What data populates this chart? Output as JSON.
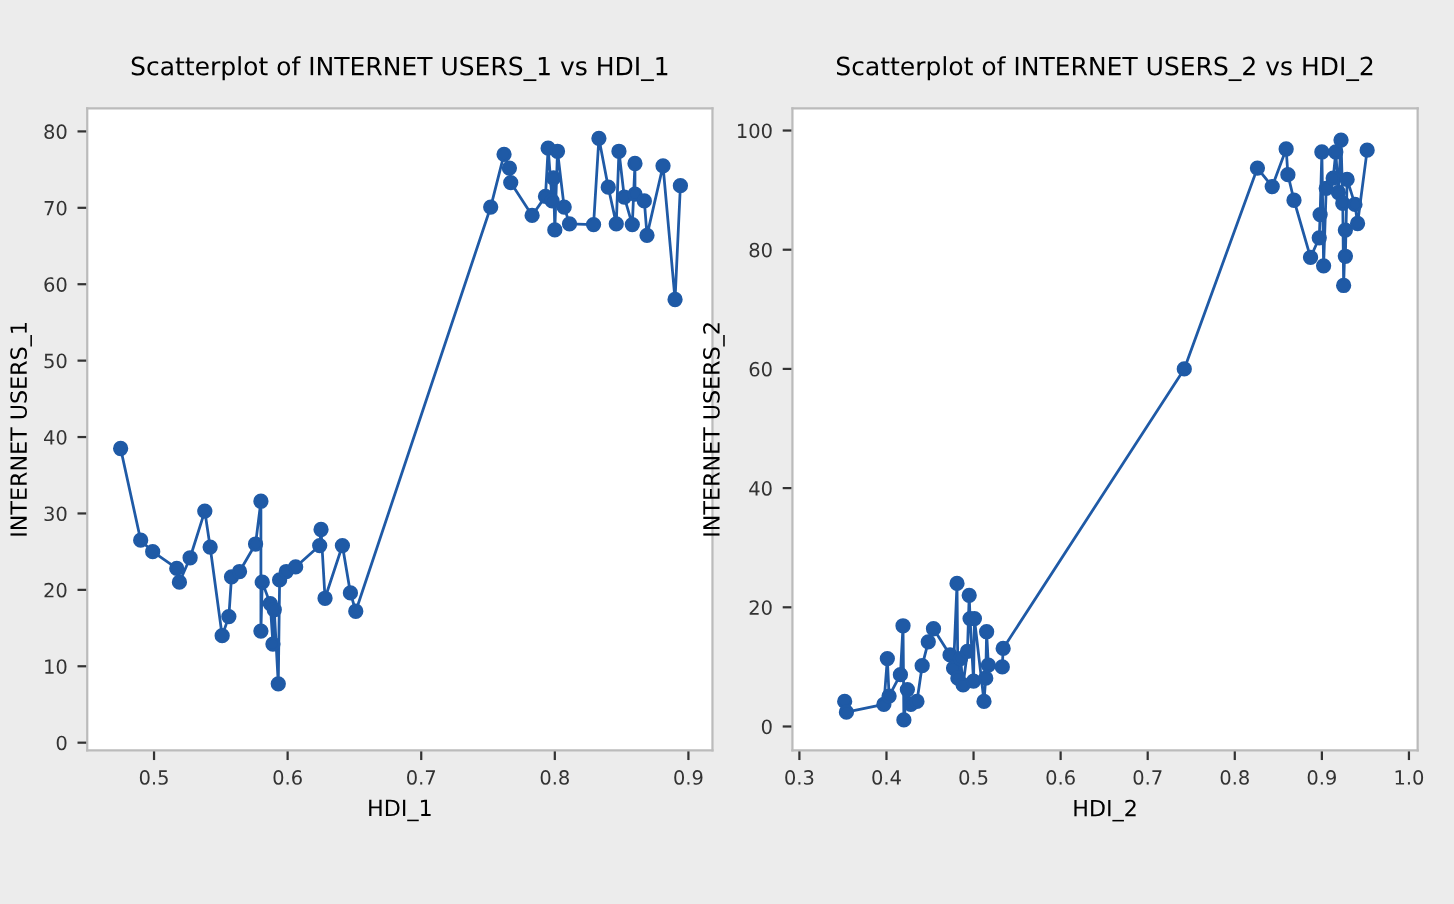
{
  "chart_data": [
    {
      "type": "line",
      "title": "Scatterplot of INTERNET USERS_1 vs HDI_1",
      "xlabel": "HDI_1",
      "ylabel": "INTERNET USERS_1",
      "marker": "circle",
      "line_style": "solid",
      "grid": false,
      "xlim": [
        0.45,
        0.918
      ],
      "ylim": [
        -1,
        83
      ],
      "xticks": [
        0.5,
        0.6,
        0.7,
        0.8,
        0.9
      ],
      "yticks": [
        0,
        10,
        20,
        30,
        40,
        50,
        60,
        70,
        80
      ],
      "series": [
        {
          "color": "#1f5aa6",
          "x": [
            0.475,
            0.49,
            0.499,
            0.517,
            0.519,
            0.527,
            0.538,
            0.542,
            0.551,
            0.556,
            0.558,
            0.564,
            0.576,
            0.58,
            0.58,
            0.581,
            0.587,
            0.589,
            0.59,
            0.593,
            0.594,
            0.599,
            0.606,
            0.624,
            0.625,
            0.628,
            0.641,
            0.647,
            0.651,
            0.752,
            0.762,
            0.766,
            0.767,
            0.783,
            0.793,
            0.795,
            0.798,
            0.799,
            0.8,
            0.802,
            0.807,
            0.811,
            0.829,
            0.833,
            0.84,
            0.846,
            0.848,
            0.852,
            0.858,
            0.86,
            0.86,
            0.867,
            0.869,
            0.881,
            0.89,
            0.894
          ],
          "values": [
            38.5,
            26.5,
            25,
            22.8,
            21,
            24.2,
            30.3,
            25.6,
            14,
            16.5,
            21.7,
            22.4,
            26,
            31.6,
            14.6,
            21,
            18.2,
            12.9,
            17.4,
            7.7,
            21.3,
            22.4,
            23,
            25.8,
            27.9,
            18.9,
            25.8,
            19.6,
            17.2,
            70.1,
            77,
            75.2,
            73.3,
            69,
            71.5,
            77.8,
            70.9,
            73.9,
            67.1,
            77.4,
            70.1,
            67.9,
            67.8,
            79.1,
            72.7,
            67.9,
            77.4,
            71.4,
            67.8,
            75.8,
            71.8,
            70.9,
            66.4,
            75.5,
            58,
            72.9
          ]
        }
      ]
    },
    {
      "type": "line",
      "title": "Scatterplot of INTERNET USERS_2 vs HDI_2",
      "xlabel": "HDI_2",
      "ylabel": "INTERNET USERS_2",
      "marker": "circle",
      "line_style": "solid",
      "grid": false,
      "xlim": [
        0.292,
        1.01
      ],
      "ylim": [
        -4,
        103.7
      ],
      "xticks": [
        0.3,
        0.4,
        0.5,
        0.6,
        0.7,
        0.8,
        0.9,
        {
          "value": 1.0,
          "label": "1.0"
        }
      ],
      "yticks": [
        0,
        20,
        40,
        60,
        80,
        100
      ],
      "series": [
        {
          "color": "#1f5aa6",
          "x": [
            0.352,
            0.354,
            0.397,
            0.401,
            0.403,
            0.416,
            0.419,
            0.42,
            0.424,
            0.428,
            0.435,
            0.441,
            0.448,
            0.454,
            0.473,
            0.477,
            0.481,
            0.482,
            0.485,
            0.488,
            0.493,
            0.495,
            0.496,
            0.5,
            0.501,
            0.512,
            0.514,
            0.515,
            0.517,
            0.533,
            0.534,
            0.742,
            0.826,
            0.843,
            0.859,
            0.861,
            0.868,
            0.887,
            0.897,
            0.898,
            0.9,
            0.902,
            0.905,
            0.913,
            0.916,
            0.919,
            0.922,
            0.924,
            0.925,
            0.927,
            0.927,
            0.929,
            0.938,
            0.941,
            0.952
          ],
          "values": [
            4.2,
            2.4,
            3.7,
            11.4,
            5.1,
            8.7,
            16.9,
            1.1,
            6.2,
            3.7,
            4.2,
            10.2,
            14.2,
            16.4,
            12,
            9.8,
            24,
            8.1,
            11.4,
            7,
            12.6,
            22,
            18.1,
            7.6,
            18.1,
            4.2,
            8.1,
            15.9,
            10.3,
            10,
            13.1,
            60,
            93.7,
            90.6,
            96.9,
            92.6,
            88.3,
            78.7,
            82,
            85.9,
            96.4,
            77.3,
            90.3,
            92,
            96.4,
            89.6,
            98.4,
            87.8,
            74,
            83.3,
            78.9,
            91.8,
            87.6,
            84.4,
            96.7
          ]
        }
      ]
    }
  ]
}
